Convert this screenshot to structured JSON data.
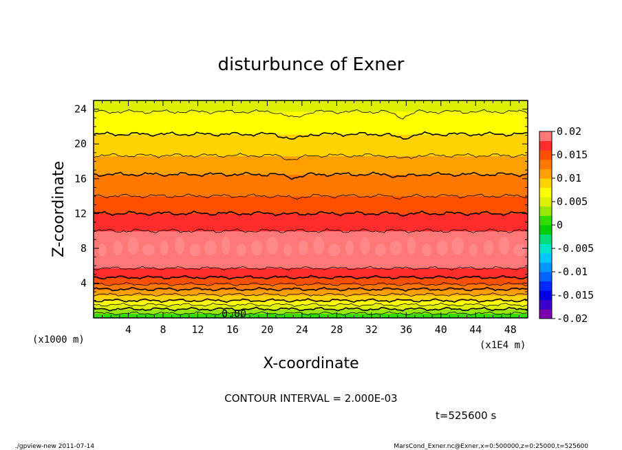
{
  "chart_data": {
    "type": "heatmap",
    "title": "disturbunce of Exner",
    "xlabel": "X-coordinate",
    "ylabel": "Z-coordinate",
    "x_unit_label": "(x1E4 m)",
    "y_unit_label": "(x1000 m)",
    "xlim": [
      0,
      50
    ],
    "ylim": [
      0,
      25
    ],
    "x_ticks": [
      "4",
      "8",
      "12",
      "16",
      "20",
      "24",
      "28",
      "32",
      "36",
      "40",
      "44",
      "48"
    ],
    "y_ticks": [
      "4",
      "8",
      "12",
      "16",
      "20",
      "24"
    ],
    "colorbar": {
      "labels": [
        "0.02",
        "0.015",
        "0.01",
        "0.005",
        "0",
        "-0.005",
        "-0.01",
        "-0.015",
        "-0.02"
      ],
      "range": [
        -0.02,
        0.02
      ]
    },
    "band_colors": [
      {
        "level": -0.019,
        "color": "#7a00b0"
      },
      {
        "level": -0.017,
        "color": "#3c00c8"
      },
      {
        "level": -0.015,
        "color": "#0000e0"
      },
      {
        "level": -0.013,
        "color": "#0028ff"
      },
      {
        "level": -0.011,
        "color": "#0064ff"
      },
      {
        "level": -0.009,
        "color": "#0096ff"
      },
      {
        "level": -0.007,
        "color": "#00c8ff"
      },
      {
        "level": -0.005,
        "color": "#00e6c8"
      },
      {
        "level": -0.003,
        "color": "#00dc78"
      },
      {
        "level": -0.001,
        "color": "#00cc00"
      },
      {
        "level": 0.001,
        "color": "#32dc00"
      },
      {
        "level": 0.003,
        "color": "#96e600"
      },
      {
        "level": 0.005,
        "color": "#dcf000"
      },
      {
        "level": 0.007,
        "color": "#ffff00"
      },
      {
        "level": 0.009,
        "color": "#ffd200"
      },
      {
        "level": 0.011,
        "color": "#ffa000"
      },
      {
        "level": 0.013,
        "color": "#ff7800"
      },
      {
        "level": 0.015,
        "color": "#ff5000"
      },
      {
        "level": 0.017,
        "color": "#ff2d2d"
      },
      {
        "level": 0.019,
        "color": "#ff7878"
      }
    ],
    "profile": [
      {
        "z": 0.0,
        "value": 0.0
      },
      {
        "z": 0.5,
        "value": 0.002
      },
      {
        "z": 1.0,
        "value": 0.004
      },
      {
        "z": 1.5,
        "value": 0.006
      },
      {
        "z": 2.0,
        "value": 0.008
      },
      {
        "z": 3.0,
        "value": 0.011
      },
      {
        "z": 4.0,
        "value": 0.0145
      },
      {
        "z": 5.0,
        "value": 0.0168
      },
      {
        "z": 6.0,
        "value": 0.0185
      },
      {
        "z": 7.0,
        "value": 0.0195
      },
      {
        "z": 8.0,
        "value": 0.02
      },
      {
        "z": 9.0,
        "value": 0.0195
      },
      {
        "z": 10.0,
        "value": 0.018
      },
      {
        "z": 12.0,
        "value": 0.016
      },
      {
        "z": 14.0,
        "value": 0.014
      },
      {
        "z": 16.0,
        "value": 0.0125
      },
      {
        "z": 18.0,
        "value": 0.0105
      },
      {
        "z": 20.0,
        "value": 0.009
      },
      {
        "z": 22.0,
        "value": 0.0072
      },
      {
        "z": 23.7,
        "value": 0.006
      },
      {
        "z": 25.0,
        "value": 0.0052
      }
    ],
    "contour_label": "0.00",
    "contour_interval_note": "CONTOUR INTERVAL = 2.000E-03",
    "time_label": "t=525600  s",
    "grid": false
  },
  "footer": {
    "left": "./gpview-new   2011-07-14",
    "right": "MarsCond_Exner.nc@Exner,x=0:500000,z=0:25000,t=525600"
  }
}
